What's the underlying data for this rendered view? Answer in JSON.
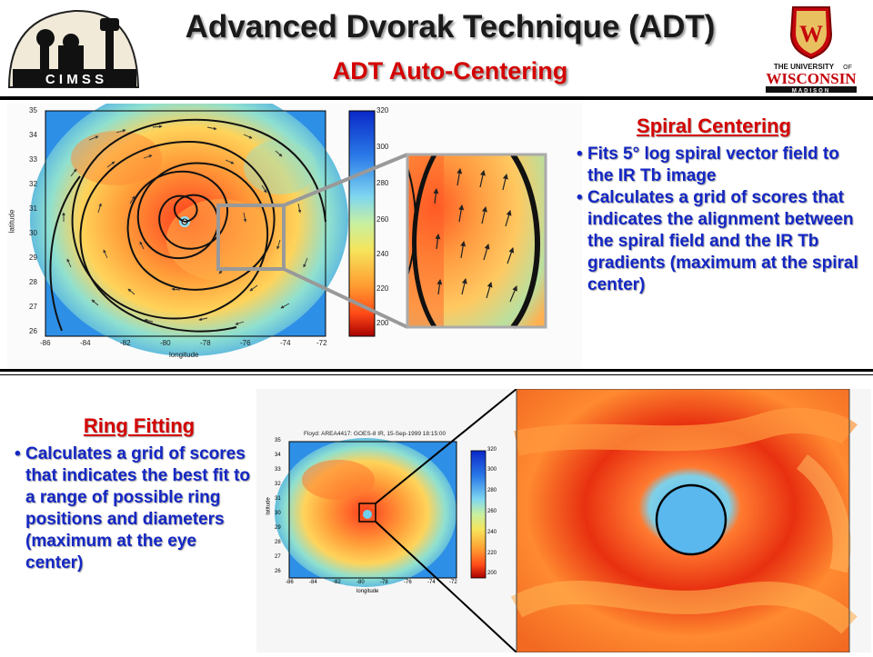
{
  "header": {
    "title": "Advanced Dvorak Technique (ADT)",
    "subtitle": "ADT Auto-Centering",
    "cimss_logo_text": "C I M S S",
    "wisconsin_logo": {
      "line1": "THE UNIVERSITY",
      "line2": "WISCONSIN",
      "line3": "MADISON",
      "of": "OF",
      "crest_letter": "W"
    }
  },
  "spiral": {
    "title": "Spiral Centering",
    "bullets": [
      "Fits 5° log spiral vector field to the IR Tb image",
      "Calculates a grid of scores that indicates the alignment between the spiral field and the IR Tb gradients (maximum at the spiral center)"
    ]
  },
  "ring": {
    "title": "Ring Fitting",
    "bullets": [
      "Calculates a grid of scores that indicates the best fit to a range of possible ring positions and diameters (maximum at the eye center)"
    ]
  },
  "plot1": {
    "xlabel": "longitude",
    "ylabel": "latitude",
    "xticks": [
      "-86",
      "-84",
      "-82",
      "-80",
      "-78",
      "-76",
      "-74",
      "-72"
    ],
    "yticks": [
      "35",
      "34",
      "33",
      "32",
      "31",
      "30",
      "29",
      "28",
      "27",
      "26"
    ],
    "cbar_ticks": [
      "320",
      "300",
      "280",
      "260",
      "240",
      "220",
      "200"
    ]
  },
  "plot2": {
    "title": "Floyd: AREA4417: GOES-8 IR, 15-Sep-1999 18:15:00",
    "xlabel": "longitude",
    "ylabel": "latitude",
    "xticks": [
      "-86",
      "-84",
      "-82",
      "-80",
      "-78",
      "-76",
      "-74",
      "-72"
    ],
    "yticks": [
      "35",
      "34",
      "33",
      "32",
      "31",
      "30",
      "29",
      "28",
      "27",
      "26"
    ],
    "cbar_ticks": [
      "320",
      "300",
      "280",
      "260",
      "240",
      "220",
      "200"
    ]
  },
  "colors": {
    "title": "#1a1a1a",
    "subtitle": "#d40000",
    "bullets": "#1427c4",
    "wisconsin_red": "#c5050c"
  }
}
